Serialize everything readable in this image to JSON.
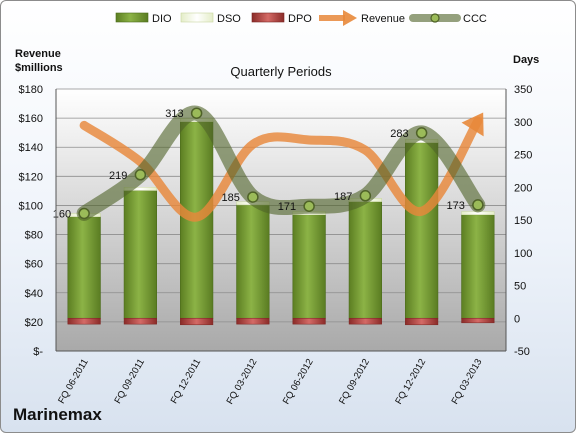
{
  "chart_data": {
    "type": "bar",
    "title": "Quarterly Periods",
    "company": "Marinemax",
    "ylabel_left": "Revenue\n$millions",
    "ylabel_right": "Days",
    "categories": [
      "FQ 06-2011",
      "FQ 09-2011",
      "FQ 12-2011",
      "FQ 03-2012",
      "FQ 06-2012",
      "FQ 09-2012",
      "FQ 12-2012",
      "FQ 03-2013"
    ],
    "ylim_left": [
      0,
      180
    ],
    "ylim_right": [
      -50,
      350
    ],
    "yticks_left": [
      "$-",
      "$20",
      "$40",
      "$60",
      "$80",
      "$100",
      "$120",
      "$140",
      "$160",
      "$180"
    ],
    "yticks_right": [
      "-50",
      "0",
      "50",
      "100",
      "150",
      "200",
      "250",
      "300",
      "350"
    ],
    "legend": [
      "DIO",
      "DSO",
      "DPO",
      "Revenue",
      "CCC"
    ],
    "legend_position": "top",
    "series": [
      {
        "name": "DIO",
        "axis": "right",
        "kind": "bar",
        "values": [
          155,
          195,
          300,
          173,
          158,
          178,
          268,
          158
        ],
        "color": "#7fa53a"
      },
      {
        "name": "DSO",
        "axis": "right",
        "kind": "bar",
        "values": [
          5,
          5,
          5,
          5,
          5,
          5,
          5,
          5
        ],
        "color": "#f2f7df"
      },
      {
        "name": "DPO",
        "axis": "right",
        "kind": "bar",
        "values": [
          -9,
          -9,
          -10,
          -9,
          -9,
          -9,
          -10,
          -7
        ],
        "color": "#c0504d"
      },
      {
        "name": "Revenue",
        "axis": "left",
        "kind": "line",
        "values": [
          155,
          130,
          92,
          142,
          145,
          138,
          96,
          158
        ],
        "color": "#e8883a"
      },
      {
        "name": "CCC",
        "axis": "right",
        "kind": "line",
        "values": [
          160,
          219,
          313,
          185,
          171,
          187,
          283,
          173
        ],
        "color": "#4f6228"
      }
    ],
    "data_labels": [
      "160",
      "219",
      "313",
      "185",
      "171",
      "187",
      "283",
      "173"
    ]
  }
}
